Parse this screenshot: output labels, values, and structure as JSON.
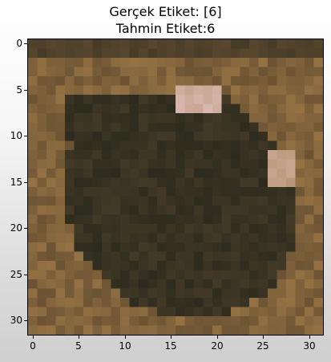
{
  "title": {
    "line1": "Gerçek Etiket: [6]",
    "line2": "Tahmin Etiket:6"
  },
  "axes": {
    "x_ticks": [
      "0",
      "5",
      "10",
      "15",
      "20",
      "25",
      "30"
    ],
    "y_ticks": [
      "0",
      "5",
      "10",
      "15",
      "20",
      "25",
      "30"
    ]
  },
  "image": {
    "grid_size": 32,
    "description_colors": {
      "dark_frog": "#2d2b1f",
      "mid_brown": "#6b5333",
      "light_brown": "#a07a48",
      "highlight": "#d8b8b0"
    }
  }
}
